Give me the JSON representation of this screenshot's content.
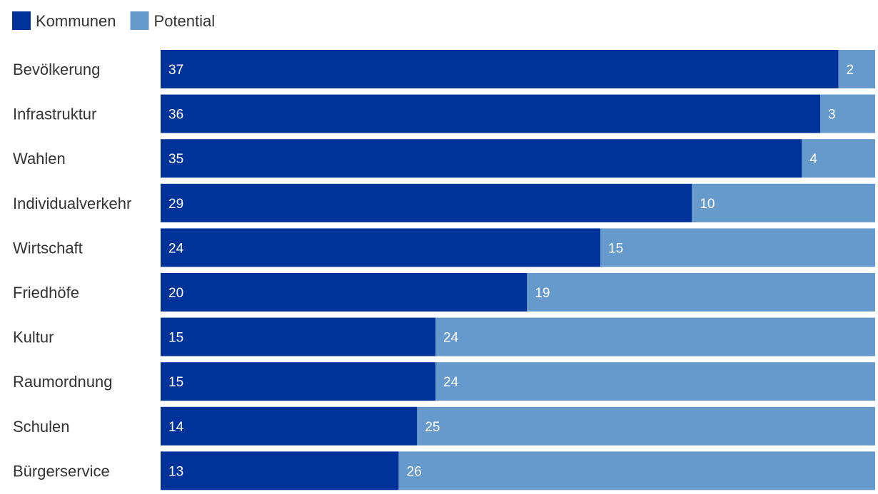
{
  "chart_data": {
    "type": "bar",
    "orientation": "horizontal",
    "stacked": true,
    "categories": [
      "Bevölkerung",
      "Infrastruktur",
      "Wahlen",
      "Individualverkehr",
      "Wirtschaft",
      "Friedhöfe",
      "Kultur",
      "Raumordnung",
      "Schulen",
      "Bürgerservice"
    ],
    "series": [
      {
        "name": "Kommunen",
        "color": "#003399",
        "values": [
          37,
          36,
          35,
          29,
          24,
          20,
          15,
          15,
          14,
          13
        ]
      },
      {
        "name": "Potential",
        "color": "#6699cc",
        "values": [
          2,
          3,
          4,
          10,
          15,
          19,
          24,
          24,
          25,
          26
        ]
      }
    ],
    "xlim": [
      0,
      39
    ],
    "grid": false,
    "legend_position": "top-left",
    "data_labels": true
  }
}
